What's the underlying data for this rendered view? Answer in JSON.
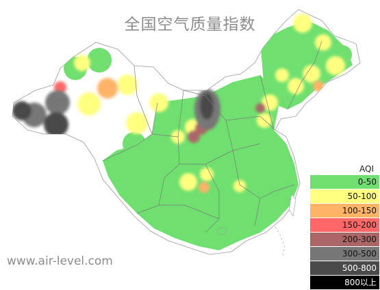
{
  "title": "全国空气质量指数",
  "source": "www.air-level.com",
  "legend": {
    "title": "AQI",
    "bands": [
      {
        "label": "0-50",
        "color": "#6fe06f"
      },
      {
        "label": "50-100",
        "color": "#ffff80"
      },
      {
        "label": "100-150",
        "color": "#ffb366"
      },
      {
        "label": "150-200",
        "color": "#ff6666"
      },
      {
        "label": "200-300",
        "color": "#aa6666"
      },
      {
        "label": "300-500",
        "color": "#777777"
      },
      {
        "label": "500-800",
        "color": "#4a4a4a"
      },
      {
        "label": "800以上",
        "color": "#000000"
      }
    ]
  }
}
